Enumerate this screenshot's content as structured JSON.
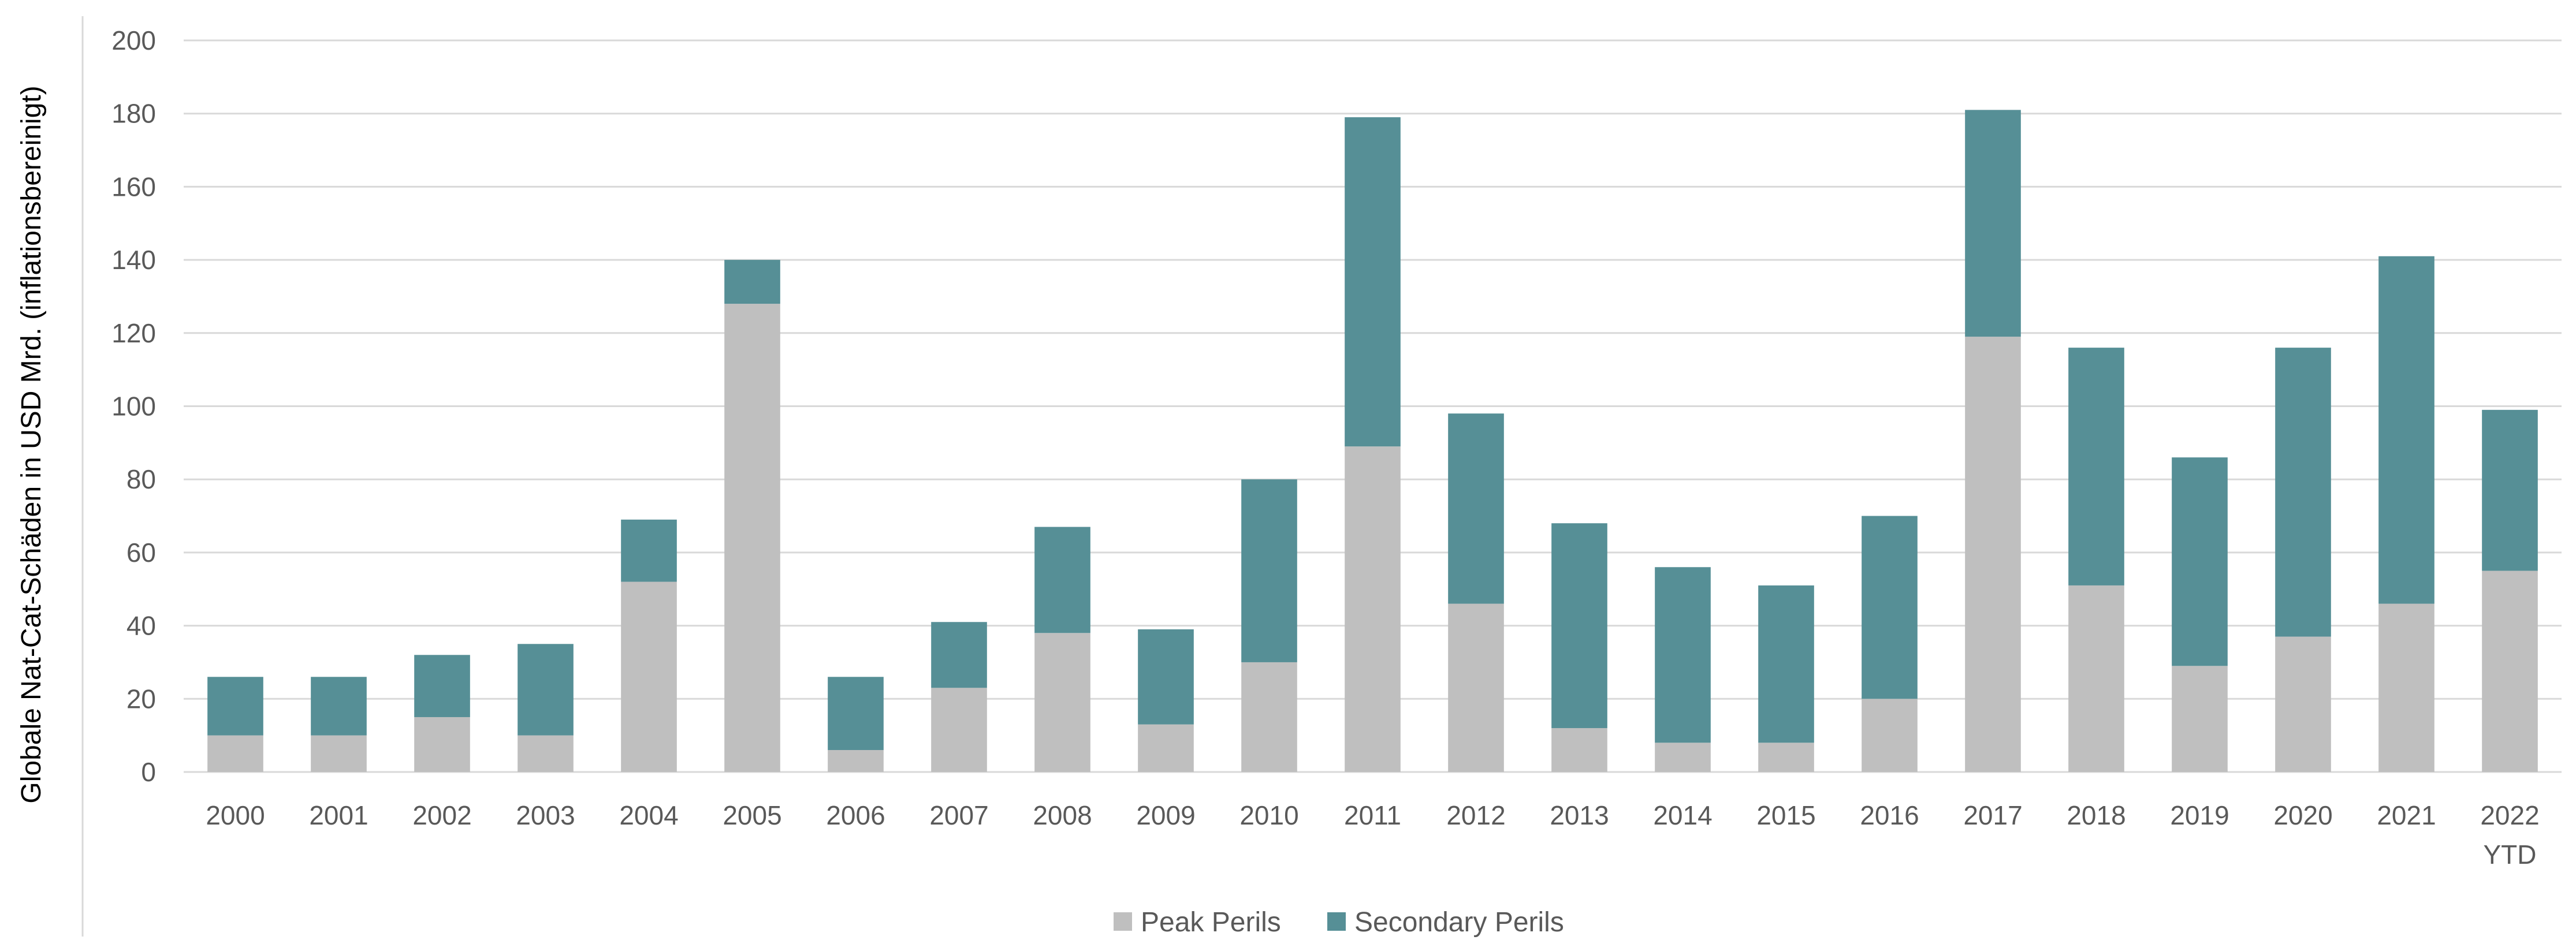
{
  "chart_data": {
    "type": "bar",
    "stacked": true,
    "categories": [
      "2000",
      "2001",
      "2002",
      "2003",
      "2004",
      "2005",
      "2006",
      "2007",
      "2008",
      "2009",
      "2010",
      "2011",
      "2012",
      "2013",
      "2014",
      "2015",
      "2016",
      "2017",
      "2018",
      "2019",
      "2020",
      "2021",
      "2022\nYTD"
    ],
    "series": [
      {
        "name": "Peak Perils",
        "color": "#bfbfbf",
        "values": [
          10,
          10,
          15,
          10,
          52,
          128,
          6,
          23,
          38,
          13,
          30,
          89,
          46,
          12,
          8,
          8,
          20,
          119,
          51,
          29,
          37,
          46,
          55
        ]
      },
      {
        "name": "Secondary Perils",
        "color": "#568f96",
        "values": [
          16,
          16,
          17,
          25,
          17,
          12,
          20,
          18,
          29,
          26,
          50,
          90,
          52,
          56,
          48,
          43,
          50,
          62,
          65,
          57,
          79,
          95,
          44
        ]
      }
    ],
    "xlabel": "",
    "ylabel": "Globale Nat-Cat-Schäden in  USD Mrd. (inflationsbereinigt)",
    "ylim": [
      0,
      200
    ],
    "yticks": [
      0,
      20,
      40,
      60,
      80,
      100,
      120,
      140,
      160,
      180,
      200
    ],
    "grid": true,
    "legend_position": "bottom"
  }
}
